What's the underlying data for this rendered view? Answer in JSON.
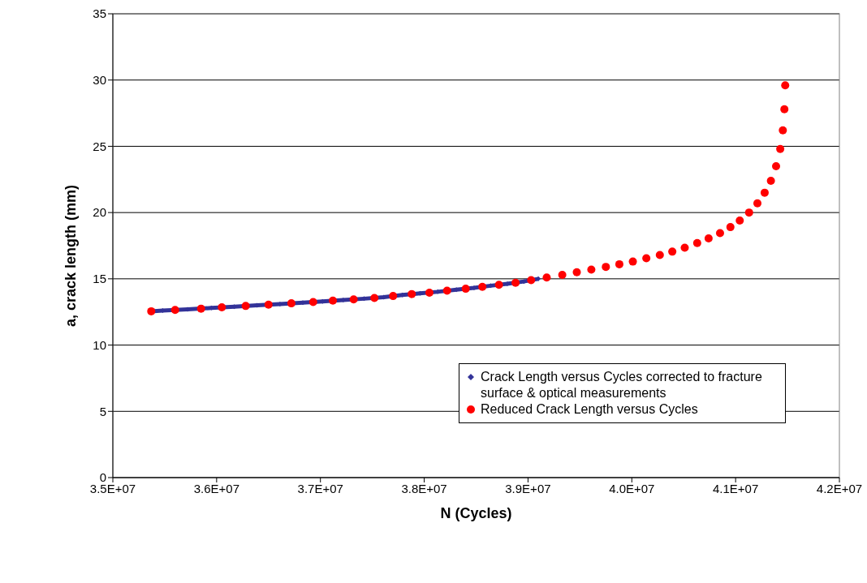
{
  "chart_data": {
    "type": "scatter",
    "xlabel": "N (Cycles)",
    "ylabel": "a, crack length (mm)",
    "xlim": [
      35000000,
      42000000
    ],
    "xticks": [
      {
        "value": 35000000,
        "label": "3.5E+07"
      },
      {
        "value": 36000000,
        "label": "3.6E+07"
      },
      {
        "value": 37000000,
        "label": "3.7E+07"
      },
      {
        "value": 38000000,
        "label": "3.8E+07"
      },
      {
        "value": 39000000,
        "label": "3.9E+07"
      },
      {
        "value": 40000000,
        "label": "4.0E+07"
      },
      {
        "value": 41000000,
        "label": "4.1E+07"
      },
      {
        "value": 42000000,
        "label": "4.2E+07"
      }
    ],
    "ylim": [
      0,
      35
    ],
    "yticks": [
      0,
      5,
      10,
      15,
      20,
      25,
      30,
      35
    ],
    "grid": "y",
    "legend": "right",
    "series": [
      {
        "name": "Crack Length versus Cycles corrected to fracture surface & optical measurements",
        "type": "line",
        "marker": "diamond",
        "color": "#333399",
        "x": [
          35370000,
          35480000,
          35720000,
          35950000,
          36170000,
          36390000,
          36610000,
          36830000,
          37020000,
          37220000,
          37420000,
          37610000,
          37790000,
          37960000,
          38130000,
          38310000,
          38480000,
          38640000,
          38800000,
          38960000,
          39100000
        ],
        "values": [
          12.55,
          12.6,
          12.7,
          12.8,
          12.9,
          13.0,
          13.1,
          13.2,
          13.3,
          13.4,
          13.5,
          13.62,
          13.78,
          13.9,
          14.02,
          14.18,
          14.32,
          14.48,
          14.62,
          14.8,
          15.0
        ]
      },
      {
        "name": "Reduced Crack Length versus Cycles",
        "marker": "circle",
        "color": "#ff0000",
        "x": [
          35370000,
          35600000,
          35850000,
          36050000,
          36280000,
          36500000,
          36720000,
          36930000,
          37120000,
          37320000,
          37520000,
          37700000,
          37880000,
          38050000,
          38220000,
          38400000,
          38560000,
          38720000,
          38880000,
          39030000,
          39180000,
          39330000,
          39470000,
          39610000,
          39750000,
          39880000,
          40010000,
          40140000,
          40270000,
          40390000,
          40510000,
          40630000,
          40740000,
          40850000,
          40950000,
          41040000,
          41130000,
          41210000,
          41280000,
          41340000,
          41390000,
          41430000,
          41455000,
          41470000,
          41478000
        ],
        "values": [
          12.55,
          12.65,
          12.75,
          12.85,
          12.95,
          13.05,
          13.15,
          13.25,
          13.35,
          13.45,
          13.55,
          13.7,
          13.85,
          13.95,
          14.1,
          14.25,
          14.4,
          14.55,
          14.7,
          14.9,
          15.1,
          15.3,
          15.5,
          15.7,
          15.9,
          16.1,
          16.3,
          16.55,
          16.8,
          17.05,
          17.35,
          17.7,
          18.05,
          18.45,
          18.9,
          19.4,
          20.0,
          20.7,
          21.5,
          22.4,
          23.5,
          24.8,
          26.2,
          27.8,
          29.6
        ]
      }
    ]
  }
}
